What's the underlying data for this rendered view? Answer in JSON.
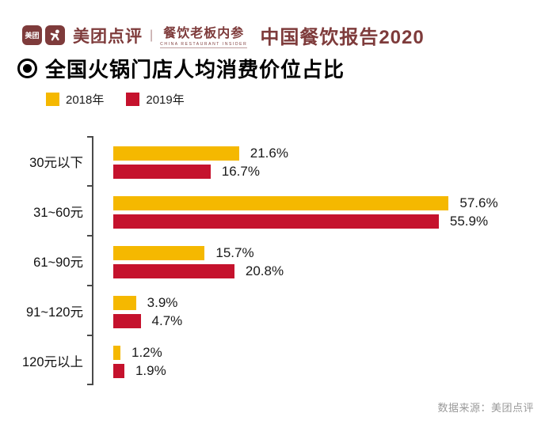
{
  "header": {
    "logo_badge": "美团",
    "brand_name": "美团点评",
    "divider": "|",
    "partner_name": "餐饮老板内参",
    "partner_subtitle": "CHINA RESTAURANT INSIDER",
    "report_title": "中国餐饮报告2020"
  },
  "title": "全国火锅门店人均消费价位占比",
  "chart_data": {
    "type": "bar",
    "orientation": "horizontal",
    "title": "全国火锅门店人均消费价位占比",
    "xlabel": "",
    "ylabel": "",
    "value_unit": "%",
    "xlim": [
      0,
      60
    ],
    "grid": false,
    "legend_position": "top-left",
    "categories": [
      "30元以下",
      "31~60元",
      "61~90元",
      "91~120元",
      "120元以上"
    ],
    "series": [
      {
        "name": "2018年",
        "color": "#F5B800",
        "values": [
          21.6,
          57.6,
          15.7,
          3.9,
          1.2
        ],
        "labels": [
          "21.6%",
          "57.6%",
          "15.7%",
          "3.9%",
          "1.2%"
        ]
      },
      {
        "name": "2019年",
        "color": "#C5122D",
        "values": [
          16.7,
          55.9,
          20.8,
          4.7,
          1.9
        ],
        "labels": [
          "16.7%",
          "55.9%",
          "20.8%",
          "4.7%",
          "1.9%"
        ]
      }
    ]
  },
  "footer": {
    "source": "数据来源：美团点评"
  },
  "colors": {
    "brand_maroon": "#7E3B3B",
    "bar_2018_yellow": "#F5B800",
    "bar_2019_red": "#C5122D",
    "axis_gray": "#4A4A4A",
    "source_gray": "#999999",
    "text_black": "#111111"
  }
}
